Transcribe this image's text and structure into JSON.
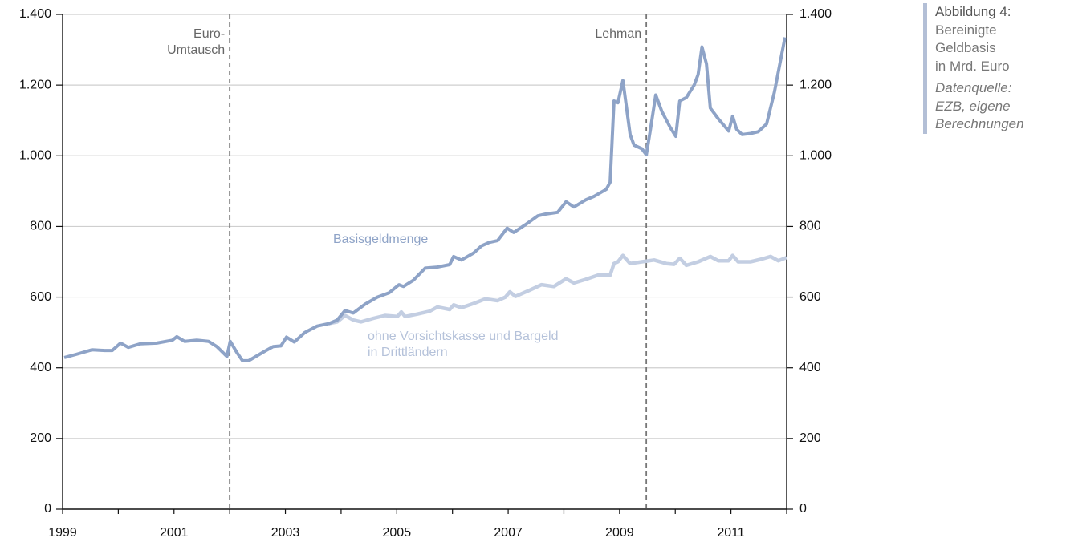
{
  "chart_data": {
    "type": "line",
    "xlim": [
      1999,
      2012
    ],
    "xticks": [
      1999,
      2001,
      2003,
      2005,
      2007,
      2009,
      2011
    ],
    "xminorticks": [
      2000,
      2002,
      2004,
      2006,
      2008,
      2010,
      2012
    ],
    "ylim": [
      0,
      1400
    ],
    "yticks": [
      0,
      200,
      400,
      600,
      800,
      {
        "value": 1000,
        "label": "1.000"
      },
      {
        "value": 1200,
        "label": "1.200"
      },
      {
        "value": 1400,
        "label": "1.400"
      }
    ],
    "y2lim": [
      0,
      1400
    ],
    "y2ticks": [
      0,
      200,
      400,
      600,
      800,
      {
        "value": 1000,
        "label": "1.000"
      },
      {
        "value": 1200,
        "label": "1.200"
      },
      {
        "value": 1400,
        "label": "1.400"
      }
    ],
    "grid": true,
    "annotations": [
      {
        "x": 2002.0,
        "text": [
          "Euro-",
          "Umtausch"
        ]
      },
      {
        "x": 2009.48,
        "text": [
          "Lehman"
        ]
      }
    ],
    "series": [
      {
        "name": "Basisgeldmenge",
        "color": "#8ea3c7",
        "x": [
          1999.03,
          1999.24,
          1999.53,
          1999.75,
          1999.89,
          2000.04,
          2000.18,
          2000.4,
          2000.69,
          2000.97,
          2001.05,
          2001.19,
          2001.41,
          2001.62,
          2001.77,
          2001.95,
          2002.01,
          2002.13,
          2002.23,
          2002.34,
          2002.63,
          2002.78,
          2002.92,
          2003.02,
          2003.16,
          2003.35,
          2003.57,
          2003.78,
          2003.93,
          2004.07,
          2004.22,
          2004.43,
          2004.65,
          2004.86,
          2005.04,
          2005.12,
          2005.3,
          2005.51,
          2005.73,
          2005.95,
          2006.02,
          2006.16,
          2006.38,
          2006.52,
          2006.66,
          2006.81,
          2006.98,
          2007.1,
          2007.31,
          2007.53,
          2007.67,
          2007.89,
          2008.04,
          2008.18,
          2008.39,
          2008.54,
          2008.76,
          2008.83,
          2008.9,
          2008.97,
          2009.06,
          2009.19,
          2009.26,
          2009.4,
          2009.48,
          2009.55,
          2009.65,
          2009.76,
          2009.91,
          2010.01,
          2010.08,
          2010.2,
          2010.34,
          2010.41,
          2010.48,
          2010.56,
          2010.63,
          2010.77,
          2010.96,
          2011.03,
          2011.1,
          2011.2,
          2011.35,
          2011.49,
          2011.64,
          2011.78,
          2011.97
        ],
        "values": [
          429,
          438,
          451,
          449,
          449,
          470,
          458,
          468,
          470,
          478,
          488,
          475,
          478,
          475,
          460,
          432,
          475,
          443,
          420,
          420,
          447,
          460,
          462,
          487,
          473,
          500,
          518,
          525,
          535,
          562,
          555,
          580,
          600,
          612,
          635,
          630,
          648,
          682,
          685,
          692,
          715,
          705,
          725,
          745,
          755,
          760,
          795,
          783,
          805,
          830,
          835,
          840,
          870,
          855,
          875,
          885,
          905,
          925,
          1155,
          1150,
          1213,
          1060,
          1030,
          1020,
          1003,
          1070,
          1172,
          1125,
          1080,
          1055,
          1155,
          1165,
          1200,
          1230,
          1308,
          1260,
          1135,
          1105,
          1070,
          1112,
          1075,
          1060,
          1063,
          1068,
          1090,
          1180,
          1335
        ]
      },
      {
        "name": "ohne Vorsichtskasse und Bargeld in Drittländern",
        "color": "#c3cee2",
        "x": [
          2003.78,
          2003.93,
          2004.07,
          2004.22,
          2004.36,
          2004.58,
          2004.79,
          2005.01,
          2005.08,
          2005.15,
          2005.37,
          2005.59,
          2005.73,
          2005.95,
          2006.02,
          2006.16,
          2006.38,
          2006.59,
          2006.81,
          2006.95,
          2007.03,
          2007.13,
          2007.39,
          2007.6,
          2007.82,
          2008.04,
          2008.18,
          2008.39,
          2008.61,
          2008.83,
          2008.9,
          2008.97,
          2009.06,
          2009.19,
          2009.4,
          2009.62,
          2009.84,
          2009.98,
          2010.08,
          2010.2,
          2010.41,
          2010.63,
          2010.77,
          2010.96,
          2011.03,
          2011.13,
          2011.35,
          2011.56,
          2011.71,
          2011.85,
          2012.0
        ],
        "values": [
          525,
          530,
          548,
          535,
          530,
          540,
          548,
          545,
          558,
          545,
          552,
          560,
          572,
          565,
          578,
          570,
          582,
          595,
          590,
          600,
          615,
          602,
          620,
          635,
          630,
          652,
          640,
          650,
          662,
          662,
          695,
          700,
          718,
          695,
          700,
          705,
          695,
          693,
          710,
          690,
          700,
          715,
          703,
          703,
          718,
          700,
          700,
          708,
          715,
          703,
          712
        ]
      }
    ]
  },
  "caption": {
    "title": "Abbildung 4:",
    "lines": [
      "Bereinigte",
      "Geldbasis",
      "in Mrd. Euro"
    ],
    "source": [
      "Datenquelle:",
      "EZB, eigene",
      "Berechnungen"
    ]
  }
}
